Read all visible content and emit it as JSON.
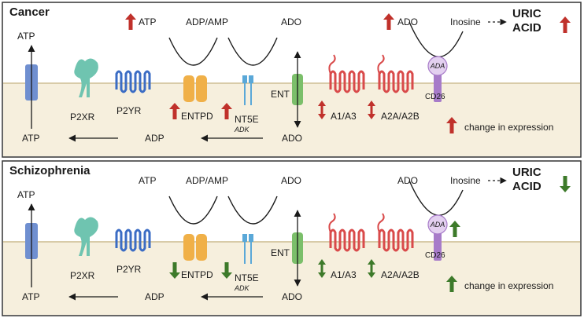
{
  "panels": [
    {
      "key": "cancer",
      "title": "Cancer",
      "labels": {
        "atp_top_annot": "ATP",
        "adp_amp_top": "ADP/AMP",
        "ado_top": "ADO",
        "ado_right": "ADO",
        "inosine": "Inosine",
        "uric_line1": "URIC",
        "uric_line2": "ACID",
        "atp_out": "ATP",
        "atp_in": "ATP",
        "adp_in": "ADP",
        "ado_in": "ADO",
        "p2xr": "P2XR",
        "p2yr": "P2YR",
        "entpd": "ENTPD",
        "nt5e": "NT5E",
        "adk": "ADK",
        "ent": "ENT",
        "a1a3": "A1/A3",
        "a2a2b": "A2A/A2B",
        "ada": "ADA",
        "cd26": "CD26",
        "legend": "change in expression"
      },
      "expression_arrows": {
        "atp": "up",
        "ado": "up",
        "uric_acid": "up",
        "entpd": "up",
        "nt5e": "up",
        "a1a3": "both",
        "a2a2b": "both",
        "cd26": "none",
        "legend": "up"
      }
    },
    {
      "key": "schizophrenia",
      "title": "Schizophrenia",
      "labels": {
        "atp_top_annot": "ATP",
        "adp_amp_top": "ADP/AMP",
        "ado_top": "ADO",
        "ado_right": "ADO",
        "inosine": "Inosine",
        "uric_line1": "URIC",
        "uric_line2": "ACID",
        "atp_out": "ATP",
        "atp_in": "ATP",
        "adp_in": "ADP",
        "ado_in": "ADO",
        "p2xr": "P2XR",
        "p2yr": "P2YR",
        "entpd": "ENTPD",
        "nt5e": "NT5E",
        "adk": "ADK",
        "ent": "ENT",
        "a1a3": "A1/A3",
        "a2a2b": "A2A/A2B",
        "ada": "ADA",
        "cd26": "CD26",
        "legend": "change in expression"
      },
      "expression_arrows": {
        "atp": "none",
        "ado": "none",
        "uric_acid": "down",
        "entpd": "down",
        "nt5e": "down",
        "a1a3": "both",
        "a2a2b": "both",
        "cd26": "up",
        "legend": "up"
      }
    }
  ],
  "colors": {
    "up_arrow": "#c0312b",
    "down_arrow": "#3d7a2a",
    "membrane": "#f6efdd",
    "membrane_line": "#d8cba8",
    "p2xr": "#6fc4b0",
    "p2yr": "#3b6cc4",
    "entpd": "#f0b048",
    "nt5e": "#5aa8d8",
    "ent": "#7bbf6a",
    "adenosine_receptor": "#d94a4a",
    "cd26": "#a77bc9",
    "ada": "#e3d0f0",
    "channel_blue": "#6f8fd0"
  }
}
